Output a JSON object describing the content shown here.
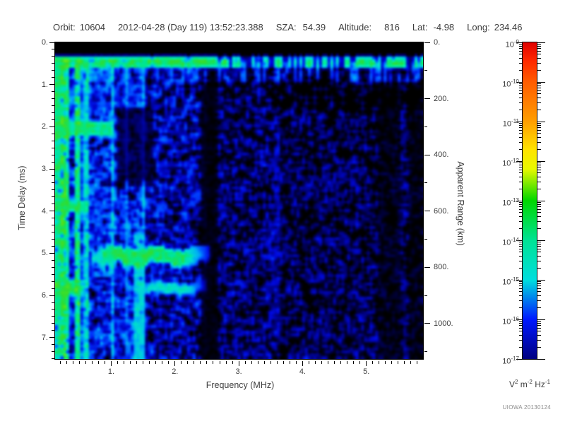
{
  "header": {
    "items": [
      {
        "label": "Orbit:",
        "value": "10604",
        "gap": 6
      },
      {
        "label": "",
        "value": "2012-04-28 (Day 119) 13:52:23.388",
        "gap": 0
      },
      {
        "label": "SZA:",
        "value": "54.39",
        "gap": 9
      },
      {
        "label": "Altitude:",
        "value": "816",
        "gap": 18
      },
      {
        "label": "Lat:",
        "value": "-4.98",
        "gap": 8
      },
      {
        "label": "Long:",
        "value": "234.46",
        "gap": 6
      }
    ]
  },
  "footer": {
    "credit": "UIOWA 20130124"
  },
  "chart_data": {
    "type": "heatmap",
    "title": "",
    "xlabel": "Frequency (MHz)",
    "ylabel_left": "Time Delay (ms)",
    "ylabel_right": "Apparent Range (km)",
    "xlim": [
      0.12,
      5.9
    ],
    "ylim_ms": [
      0,
      7.54
    ],
    "y2lim_km": [
      0,
      1131
    ],
    "x_ticks": [
      "1.",
      "2.",
      "3.",
      "4.",
      "5."
    ],
    "x_tick_values": [
      1,
      2,
      3,
      4,
      5
    ],
    "x_minor_step": 0.1,
    "y_ticks": [
      "0.",
      "1.",
      "2.",
      "3.",
      "4.",
      "5.",
      "6.",
      "7."
    ],
    "y_tick_values": [
      0,
      1,
      2,
      3,
      4,
      5,
      6,
      7
    ],
    "y_minor_step": 0.1667,
    "y2_ticks": [
      "0.",
      "200.",
      "400.",
      "600.",
      "800.",
      "1000."
    ],
    "y2_tick_values": [
      0,
      200,
      400,
      600,
      800,
      1000
    ],
    "y2_minor_step": 100,
    "grid": false,
    "plot_background": "#000000",
    "text_color": "#3d3d3d",
    "frame_color": "#000000",
    "colorbar": {
      "scale": "log",
      "range": [
        "1e-17",
        "1e-9"
      ],
      "label_base": "10",
      "tick_exponents": [
        "-9",
        "-10",
        "-11",
        "-12",
        "-13",
        "-14",
        "-15",
        "-16",
        "-17"
      ],
      "unit_segments": [
        {
          "base": "V",
          "exp": "2"
        },
        {
          "base": "m",
          "exp": "-2"
        },
        {
          "base": "Hz",
          "exp": "-1"
        }
      ],
      "stops": [
        {
          "pos": 0.0,
          "color": "#e00000"
        },
        {
          "pos": 0.06,
          "color": "#ff2a00"
        },
        {
          "pos": 0.125,
          "color": "#ff5c00"
        },
        {
          "pos": 0.25,
          "color": "#ff9e00"
        },
        {
          "pos": 0.34,
          "color": "#ffe400"
        },
        {
          "pos": 0.4,
          "color": "#e8f800"
        },
        {
          "pos": 0.5,
          "color": "#00d800"
        },
        {
          "pos": 0.625,
          "color": "#00e294"
        },
        {
          "pos": 0.75,
          "color": "#00dede"
        },
        {
          "pos": 0.875,
          "color": "#0018ff"
        },
        {
          "pos": 1.0,
          "color": "#000080"
        }
      ]
    },
    "canvas_colormap": [
      {
        "v": 0.0,
        "color": "#000000"
      },
      {
        "v": 0.08,
        "color": "#000068"
      },
      {
        "v": 0.2,
        "color": "#0008d8"
      },
      {
        "v": 0.33,
        "color": "#0048ff"
      },
      {
        "v": 0.45,
        "color": "#00a8f8"
      },
      {
        "v": 0.55,
        "color": "#00ddd0"
      },
      {
        "v": 0.65,
        "color": "#00e68a"
      },
      {
        "v": 0.75,
        "color": "#30dc30"
      },
      {
        "v": 0.88,
        "color": "#90ec00"
      },
      {
        "v": 1.0,
        "color": "#e8fa00"
      }
    ],
    "features": [
      {
        "id": "leading-blank",
        "kind": "blank",
        "f": [
          0.12,
          5.9
        ],
        "t": [
          0,
          0.22
        ]
      },
      {
        "id": "noise-left",
        "kind": "noise",
        "f": [
          0.12,
          1.45
        ],
        "t": [
          0.45,
          7.54
        ],
        "density": 0.62,
        "intensity": [
          0.2,
          0.52
        ]
      },
      {
        "id": "noise-mid",
        "kind": "noise",
        "f": [
          1.45,
          2.45
        ],
        "t": [
          0.45,
          7.54
        ],
        "density": 0.5,
        "intensity": [
          0.16,
          0.45
        ]
      },
      {
        "id": "noise-midright",
        "kind": "noise",
        "f": [
          2.45,
          3.6
        ],
        "t": [
          0.45,
          7.54
        ],
        "density": 0.42,
        "intensity": [
          0.14,
          0.32
        ]
      },
      {
        "id": "noise-right",
        "kind": "noise",
        "f": [
          3.6,
          5.9
        ],
        "t": [
          0.45,
          7.54
        ],
        "density": 0.34,
        "intensity": [
          0.12,
          0.28
        ]
      },
      {
        "id": "quiet-patch",
        "kind": "attenuate",
        "f": [
          1.1,
          1.6
        ],
        "t": [
          1.55,
          3.3
        ],
        "factor": 0.25
      },
      {
        "id": "gap-2.5MHz",
        "kind": "attenuate",
        "f": [
          2.42,
          2.62
        ],
        "t": [
          0.5,
          7.54
        ],
        "factor": 0.12
      },
      {
        "id": "gap-5.3MHz",
        "kind": "attenuate",
        "f": [
          5.2,
          5.5
        ],
        "t": [
          0.5,
          7.54
        ],
        "factor": 0.35
      },
      {
        "id": "gap-5.8MHz",
        "kind": "attenuate",
        "f": [
          5.68,
          5.9
        ],
        "t": [
          0.5,
          7.54
        ],
        "factor": 0.3
      },
      {
        "id": "surface-return-band",
        "kind": "band",
        "f": [
          0.12,
          5.9
        ],
        "t": [
          0.24,
          0.5
        ],
        "intensity": 0.72,
        "gap_f_min": 2.55,
        "gap_density": 0.33
      },
      {
        "id": "band-hanging-blobs",
        "kind": "blobs",
        "f": [
          0.12,
          5.9
        ],
        "t": [
          0.5,
          0.85
        ],
        "intensity": 0.42,
        "density": 0.4
      },
      {
        "id": "plasma-stripes-a",
        "kind": "stripes",
        "f": [
          0.12,
          1.12
        ],
        "t": [
          0.24,
          7.54
        ],
        "intensity": 0.68,
        "density": 0.32
      },
      {
        "id": "plasma-stripes-b",
        "kind": "stripes",
        "f": [
          1.12,
          1.45
        ],
        "t": [
          0.24,
          7.54
        ],
        "intensity": 0.6,
        "density": 0.3,
        "t_attenuate": {
          "t": [
            1.55,
            3.3
          ],
          "factor": 0.3
        }
      },
      {
        "id": "resonance-line-1",
        "kind": "vline",
        "f": [
          0.22,
          0.26
        ],
        "t": [
          0.24,
          7.54
        ],
        "intensity": 0.8
      },
      {
        "id": "resonance-line-2",
        "kind": "vline",
        "f": [
          0.43,
          0.47
        ],
        "t": [
          0.24,
          7.54
        ],
        "intensity": 0.8
      },
      {
        "id": "narrowband-line-2.0ms",
        "kind": "band",
        "f": [
          0.12,
          0.95
        ],
        "t": [
          1.92,
          2.12
        ],
        "intensity": 0.66
      },
      {
        "id": "narrowband-line-3.9ms",
        "kind": "band",
        "f": [
          0.12,
          0.6
        ],
        "t": [
          3.78,
          3.97
        ],
        "intensity": 0.7
      },
      {
        "id": "narrowband-line-5.8ms",
        "kind": "band",
        "f": [
          0.12,
          0.5
        ],
        "t": [
          5.72,
          5.92
        ],
        "intensity": 0.7
      },
      {
        "id": "ionosphere-echo-main",
        "kind": "trace",
        "f": [
          0.72,
          2.5
        ],
        "t": [
          4.88,
          5.28
        ],
        "intensity": 0.72
      },
      {
        "id": "ionosphere-echo-hook",
        "kind": "blobs",
        "f": [
          0.72,
          1.0
        ],
        "t": [
          5.2,
          5.5
        ],
        "intensity": 0.5,
        "density": 0.5
      },
      {
        "id": "ionosphere-echo-second",
        "kind": "trace",
        "f": [
          1.52,
          2.42
        ],
        "t": [
          5.72,
          5.97
        ],
        "intensity": 0.58
      },
      {
        "id": "vertical-line-1.4MHz",
        "kind": "vline",
        "f": [
          1.38,
          1.46
        ],
        "t": [
          4.55,
          7.54
        ],
        "intensity": 0.58
      }
    ]
  }
}
